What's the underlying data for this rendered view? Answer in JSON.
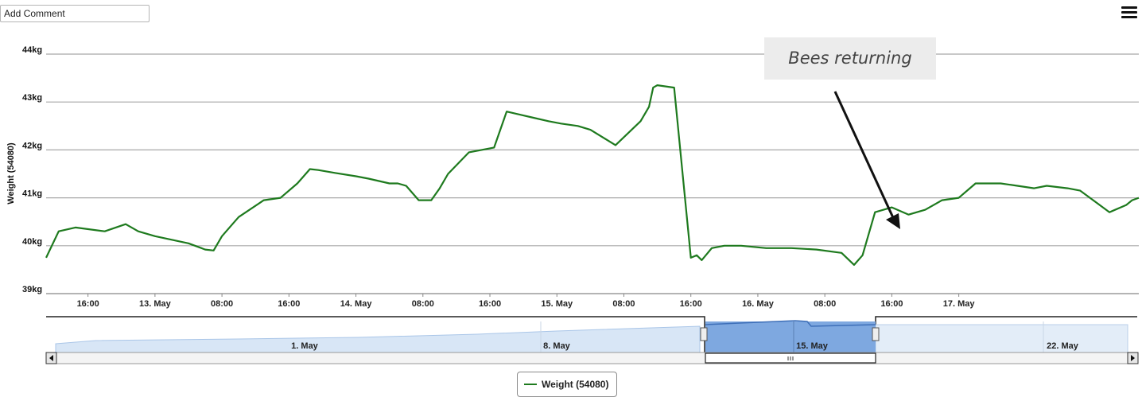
{
  "toolbar": {
    "comment_placeholder": "Add Comment",
    "menu_icon": "hamburger-menu-icon"
  },
  "chart_data": {
    "type": "line",
    "title": "",
    "ylabel": "Weight (54080)",
    "xlabel": "",
    "ylim": [
      39,
      44
    ],
    "y_unit": "kg",
    "y_ticks": [
      "39kg",
      "40kg",
      "41kg",
      "42kg",
      "43kg",
      "44kg"
    ],
    "grid": true,
    "x_range": [
      "12 May 11:00",
      "17 May 20:30"
    ],
    "x_ticks": [
      "16:00",
      "13. May",
      "08:00",
      "16:00",
      "14. May",
      "08:00",
      "16:00",
      "15. May",
      "08:00",
      "16:00",
      "16. May",
      "08:00",
      "16:00",
      "17. May"
    ],
    "series": [
      {
        "name": "Weight (54080)",
        "color": "#1e7a1e",
        "x_hours": [
          0,
          1.5,
          3.5,
          7,
          9.5,
          10.5,
          11,
          13,
          17,
          19,
          20,
          21,
          22.5,
          23,
          26,
          28,
          30,
          31.5,
          32.5,
          34.5,
          37,
          38.5,
          41,
          42,
          43,
          44.5,
          46,
          47,
          48,
          50.5,
          52,
          53.5,
          54,
          55,
          57,
          58,
          60,
          61.5,
          63.5,
          65,
          68,
          71,
          72,
          72.5,
          73,
          75,
          77,
          77.7,
          78.3,
          79.5,
          81,
          83,
          86,
          89,
          92,
          95,
          96.5,
          97.5,
          99,
          101,
          103,
          105,
          107,
          109,
          111,
          114,
          116,
          118,
          119.5,
          122,
          123.5,
          127,
          129,
          129.7,
          130.5
        ],
        "values": [
          39.75,
          40.3,
          40.38,
          40.3,
          40.45,
          40.35,
          40.3,
          40.2,
          40.05,
          39.92,
          39.9,
          40.2,
          40.5,
          40.6,
          40.95,
          41.0,
          41.3,
          41.6,
          41.58,
          41.52,
          41.45,
          41.4,
          41.3,
          41.3,
          41.25,
          40.95,
          40.95,
          41.2,
          41.5,
          41.95,
          42.0,
          42.05,
          42.3,
          42.8,
          42.72,
          42.68,
          42.6,
          42.55,
          42.5,
          42.42,
          42.1,
          42.6,
          42.9,
          43.3,
          43.35,
          43.3,
          39.75,
          39.8,
          39.7,
          39.95,
          40.0,
          40.0,
          39.95,
          39.95,
          39.92,
          39.85,
          39.6,
          39.8,
          40.7,
          40.8,
          40.65,
          40.75,
          40.95,
          41.0,
          41.3,
          41.3,
          41.25,
          41.2,
          41.25,
          41.2,
          41.15,
          40.7,
          40.85,
          40.95,
          41.0
        ]
      }
    ],
    "annotations": [
      {
        "text": "Bees returning",
        "arrow_to_x_hours": 104,
        "arrow_to_value": 39.6
      }
    ],
    "navigator": {
      "labels": [
        "1. May",
        "8. May",
        "15. May",
        "22. May"
      ],
      "selected_range": [
        "12 May",
        "17 May"
      ],
      "scrollbar_grip_icon": "grip-icon",
      "left_arrow_icon": "arrow-left-icon",
      "right_arrow_icon": "arrow-right-icon"
    },
    "legend": {
      "position": "bottom-center",
      "entries": [
        "Weight (54080)"
      ]
    }
  }
}
